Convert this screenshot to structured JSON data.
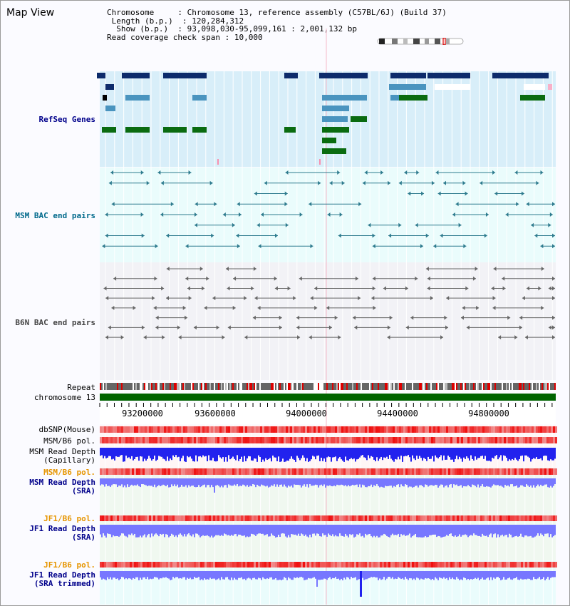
{
  "app": {
    "title": "Map View"
  },
  "info": {
    "chromosome_key": "Chromosome",
    "chromosome_val": "Chromosome 13, reference assembly (C57BL/6J) (Build 37)",
    "length_key": "Length (b.p.)",
    "length_val": "120,284,312",
    "show_key": "Show (b.p.)",
    "show_val": "93,098,030-95,099,161 : 2,001,132 bp",
    "read_key": "Read coverage check span",
    "read_val": "10,000"
  },
  "tracks": {
    "refseq": "RefSeq Genes",
    "msm_bac": "MSM BAC end pairs",
    "b6n_bac": "B6N BAC end pairs",
    "repeat": "Repeat",
    "chromosome": "chromosome 13",
    "dbsnp": "dbSNP(Mouse)",
    "msm_b6_pol_1": "MSM/B6 pol.",
    "msm_read_depth_cap_1": "MSM Read Depth",
    "msm_read_depth_cap_2": "(Capillary)",
    "msm_b6_pol_2": "MSM/B6 pol.",
    "msm_read_depth_sra_1": "MSM Read Depth",
    "msm_read_depth_sra_2": "(SRA)",
    "jf1_b6_pol_1": "JF1/B6 pol.",
    "jf1_read_depth_sra_1": "JF1 Read Depth",
    "jf1_read_depth_sra_2": "(SRA)",
    "jf1_b6_pol_2": "JF1/B6 pol.",
    "jf1_read_depth_trim_1": "JF1 Read Depth",
    "jf1_read_depth_trim_2": "(SRA trimmed)"
  },
  "axis": {
    "ticks": [
      "93200000",
      "93600000",
      "94000000",
      "94400000",
      "94800000"
    ]
  },
  "colors": {
    "refseq_dark": "#0d2b6b",
    "refseq_light": "#4a94bf",
    "refseq_green": "#0a6b10",
    "bac_line": "#2e7b8e",
    "b6n_line": "#666666",
    "chromosome": "#006400",
    "depth_blue": "#2222ee",
    "depth_light": "#7777ff",
    "snp_red": "#ee2222",
    "label_blue": "#00008b",
    "label_teal": "#00698b",
    "label_orange": "#e69500"
  }
}
